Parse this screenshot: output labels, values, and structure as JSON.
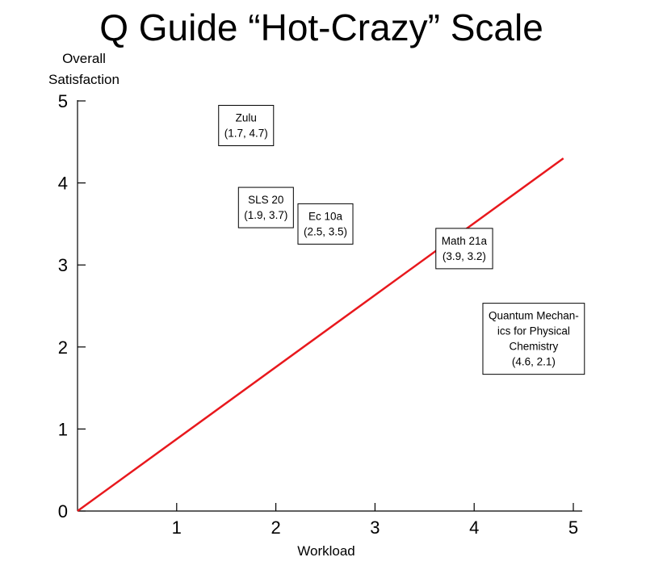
{
  "chart_data": {
    "type": "scatter",
    "title": "Q Guide “Hot-Crazy” Scale",
    "xlabel": "Workload",
    "ylabel_lines": [
      "Overall",
      "Satisfaction"
    ],
    "xlim": [
      0,
      5
    ],
    "ylim": [
      0,
      5
    ],
    "x_ticks": [
      "1",
      "2",
      "3",
      "4",
      "5"
    ],
    "y_ticks": [
      "0",
      "1",
      "2",
      "3",
      "4",
      "5"
    ],
    "grid": false,
    "line": {
      "color": "#e8181d",
      "x": [
        0,
        4.9
      ],
      "y": [
        0,
        4.3
      ]
    },
    "points": [
      {
        "label_lines": [
          "Zulu",
          "(1.7, 4.7)"
        ],
        "x": 1.7,
        "y": 4.7
      },
      {
        "label_lines": [
          "SLS 20",
          "(1.9, 3.7)"
        ],
        "x": 1.9,
        "y": 3.7
      },
      {
        "label_lines": [
          "Ec 10a",
          "(2.5, 3.5)"
        ],
        "x": 2.5,
        "y": 3.5
      },
      {
        "label_lines": [
          "Math 21a",
          "(3.9, 3.2)"
        ],
        "x": 3.9,
        "y": 3.2
      },
      {
        "label_lines": [
          "Quantum Mechan-",
          "ics for Physical",
          "Chemistry",
          "(4.6, 2.1)"
        ],
        "x": 4.6,
        "y": 2.1
      }
    ]
  }
}
